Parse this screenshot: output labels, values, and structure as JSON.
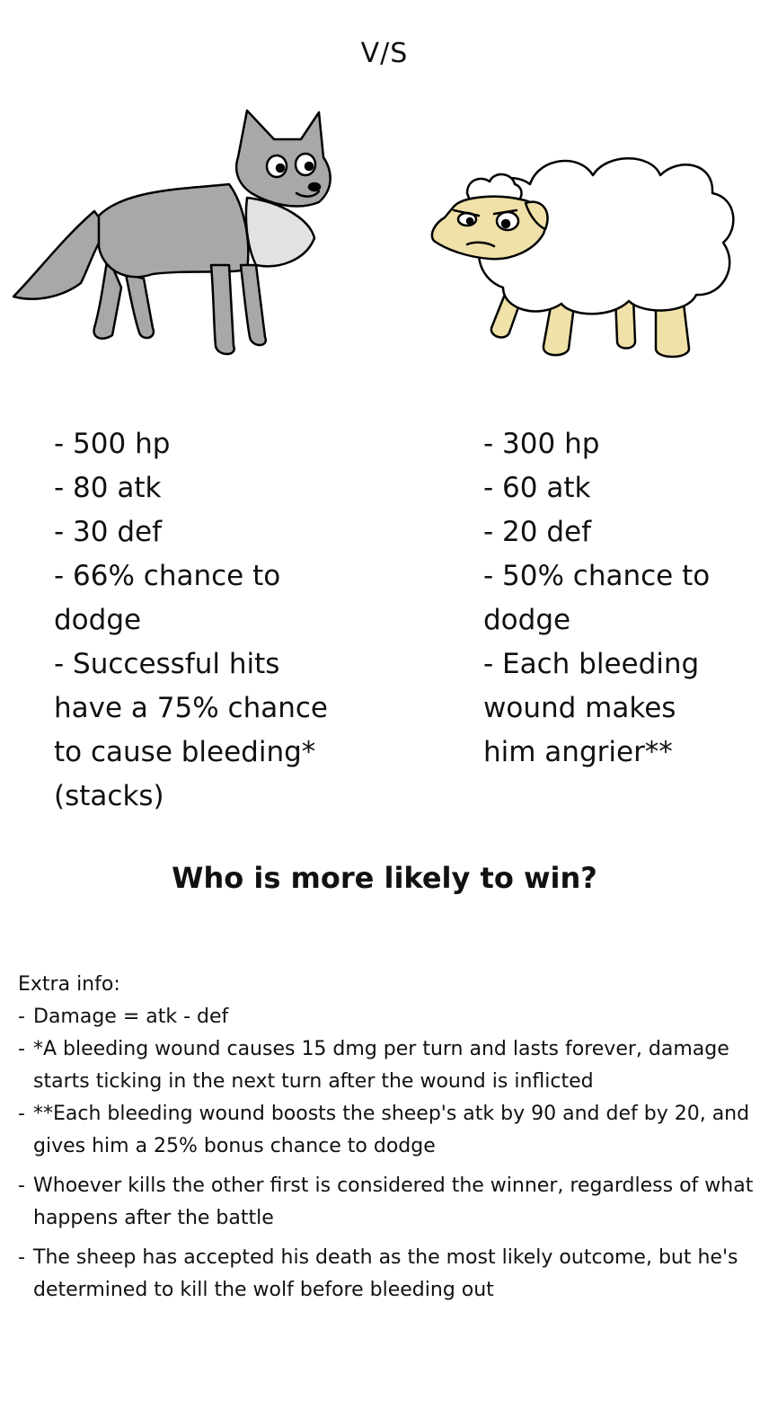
{
  "header": {
    "title": "V/S"
  },
  "wolf": {
    "stats": [
      "- 500 hp",
      "- 80 atk",
      "- 30 def",
      "- 66% chance to",
      "dodge",
      "- Successful hits",
      "have a 75% chance",
      "to cause bleeding*",
      "(stacks)"
    ]
  },
  "sheep": {
    "stats": [
      "- 300 hp",
      "- 60 atk",
      "- 20 def",
      "- 50% chance to",
      "dodge",
      "- Each bleeding",
      "wound makes",
      "him angrier**"
    ]
  },
  "question": "Who is more likely to win?",
  "extra": {
    "heading": "Extra info:",
    "items": [
      "Damage = atk - def",
      "*A bleeding wound causes 15 dmg per turn and lasts forever, damage starts ticking in the next turn after the wound is inflicted",
      "**Each bleeding wound boosts the sheep's atk by 90 and def by 20, and gives him a 25% bonus chance to dodge",
      "Whoever kills the other first is considered the winner, regardless of what happens after the battle",
      "The sheep has accepted his death as the most likely outcome, but he's determined to kill the wolf before bleeding out"
    ],
    "dash": "-"
  },
  "colors": {
    "wolf_fur": "#a8a8a8",
    "wolf_chest": "#e2e2e2",
    "sheep_wool": "#ffffff",
    "sheep_skin": "#efe1a8",
    "outline": "#000000"
  }
}
